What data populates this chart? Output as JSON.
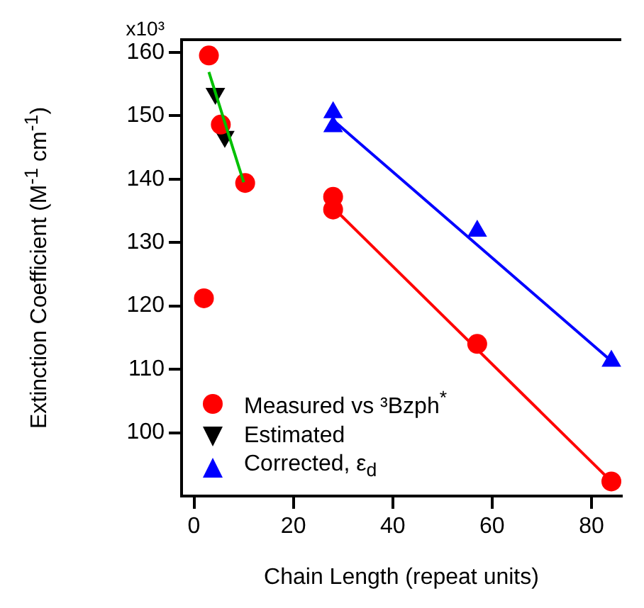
{
  "chart_data": {
    "type": "scatter",
    "xlabel": "Chain Length (repeat units)",
    "ylabel": "Extinction Coefficient (M$^{-1}$ cm$^{-1}$)",
    "annotations": [
      "x10³"
    ],
    "xlim": [
      -2.5,
      86
    ],
    "xticks": [
      0,
      20,
      40,
      60,
      80
    ],
    "ylim": [
      90,
      162
    ],
    "yticks": [
      100,
      110,
      120,
      130,
      140,
      150,
      160
    ],
    "grid": false,
    "legend": "bottom left",
    "series": [
      {
        "name": "Measured vs ³Bzph$^{*}$",
        "type": "scatter",
        "marker": "circle",
        "color": "#ff0000",
        "x": [
          3,
          5.4,
          10.3,
          2,
          28,
          28,
          57,
          84
        ],
        "values": [
          159.5,
          148.6,
          139.4,
          121.2,
          137.2,
          135.2,
          114,
          92.3
        ]
      },
      {
        "name": "Estimated",
        "type": "scatter",
        "marker": "triangle-down",
        "color": "#000000",
        "x": [
          4.3,
          6.2
        ],
        "values": [
          153.5,
          146.7
        ]
      },
      {
        "name": "Corrected, ε$_{d}$",
        "type": "scatter",
        "marker": "triangle",
        "color": "#0000ff",
        "x": [
          28,
          28,
          57,
          84
        ],
        "values": [
          150.5,
          148.3,
          131.8,
          111.3
        ]
      },
      {
        "type": "line",
        "marker": "none",
        "color": "#00c000",
        "x": [
          3,
          10
        ],
        "values": [
          156.9,
          139.5
        ]
      },
      {
        "type": "line",
        "marker": "none",
        "color": "#ff0000",
        "x": [
          28,
          84
        ],
        "values": [
          135.5,
          92.3
        ]
      },
      {
        "type": "line",
        "marker": "none",
        "color": "#0000ff",
        "x": [
          28,
          84
        ],
        "values": [
          149.3,
          111.3
        ]
      }
    ]
  }
}
